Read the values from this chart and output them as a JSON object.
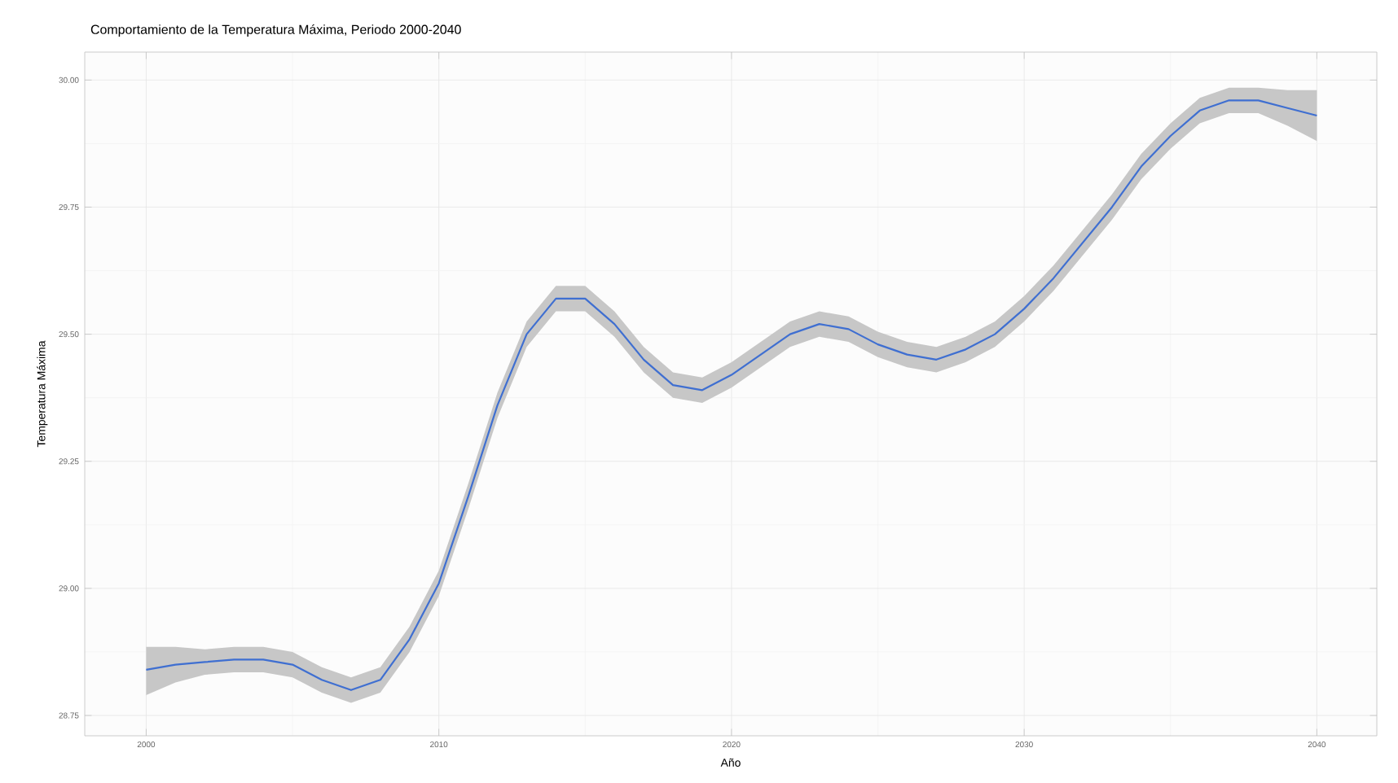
{
  "chart_data": {
    "type": "line",
    "title": "Comportamiento de la Temperatura Máxima, Periodo 2000-2040",
    "xlabel": "Año",
    "ylabel": "Temperatura Máxima",
    "x": [
      2000,
      2001,
      2002,
      2003,
      2004,
      2005,
      2006,
      2007,
      2008,
      2009,
      2010,
      2011,
      2012,
      2013,
      2014,
      2015,
      2016,
      2017,
      2018,
      2019,
      2020,
      2021,
      2022,
      2023,
      2024,
      2025,
      2026,
      2027,
      2028,
      2029,
      2030,
      2031,
      2032,
      2033,
      2034,
      2035,
      2036,
      2037,
      2038,
      2039,
      2040
    ],
    "series": [
      {
        "color": "#3f6fd1",
        "values": [
          28.84,
          28.85,
          28.855,
          28.86,
          28.86,
          28.85,
          28.82,
          28.8,
          28.82,
          28.9,
          29.01,
          29.18,
          29.36,
          29.5,
          29.57,
          29.57,
          29.52,
          29.45,
          29.4,
          29.39,
          29.42,
          29.46,
          29.5,
          29.52,
          29.51,
          29.48,
          29.46,
          29.45,
          29.47,
          29.5,
          29.55,
          29.61,
          29.68,
          29.75,
          29.83,
          29.89,
          29.94,
          29.96,
          29.96,
          29.945,
          29.93
        ],
        "lower": [
          28.79,
          28.815,
          28.83,
          28.835,
          28.835,
          28.825,
          28.795,
          28.775,
          28.795,
          28.875,
          28.985,
          29.155,
          29.335,
          29.475,
          29.545,
          29.545,
          29.495,
          29.425,
          29.375,
          29.365,
          29.395,
          29.435,
          29.475,
          29.495,
          29.485,
          29.455,
          29.435,
          29.425,
          29.445,
          29.475,
          29.525,
          29.585,
          29.655,
          29.725,
          29.805,
          29.865,
          29.915,
          29.935,
          29.935,
          29.91,
          29.88
        ],
        "upper": [
          28.885,
          28.885,
          28.88,
          28.885,
          28.885,
          28.875,
          28.845,
          28.825,
          28.845,
          28.925,
          29.035,
          29.205,
          29.385,
          29.525,
          29.595,
          29.595,
          29.545,
          29.475,
          29.425,
          29.415,
          29.445,
          29.485,
          29.525,
          29.545,
          29.535,
          29.505,
          29.485,
          29.475,
          29.495,
          29.525,
          29.575,
          29.635,
          29.705,
          29.775,
          29.855,
          29.915,
          29.965,
          29.985,
          29.985,
          29.98,
          29.98
        ]
      }
    ],
    "xlim": [
      1997.9,
      2042.05
    ],
    "ylim": [
      28.71,
      30.055
    ],
    "xticks": [
      2000,
      2010,
      2020,
      2030,
      2040
    ],
    "yticks": [
      {
        "value": 28.75,
        "label": "28.75"
      },
      {
        "value": 29.0,
        "label": "29.00"
      },
      {
        "value": 29.25,
        "label": "29.25"
      },
      {
        "value": 29.5,
        "label": "29.50"
      },
      {
        "value": 29.75,
        "label": "29.75"
      },
      {
        "value": 30.0,
        "label": "30.00"
      }
    ],
    "grid": true,
    "marker": "none",
    "line_style": "solid"
  }
}
